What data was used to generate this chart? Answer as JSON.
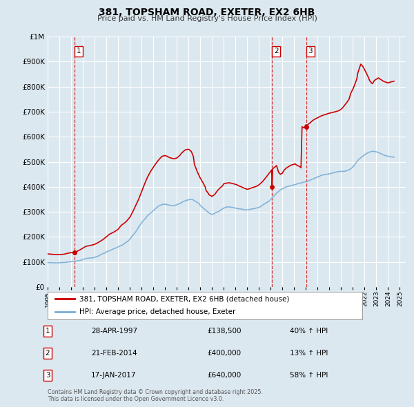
{
  "title": "381, TOPSHAM ROAD, EXETER, EX2 6HB",
  "subtitle": "Price paid vs. HM Land Registry's House Price Index (HPI)",
  "legend_label_red": "381, TOPSHAM ROAD, EXETER, EX2 6HB (detached house)",
  "legend_label_blue": "HPI: Average price, detached house, Exeter",
  "ylim": [
    0,
    1000000
  ],
  "xlim_start": 1995.0,
  "xlim_end": 2025.5,
  "background_color": "#dce8f0",
  "plot_bg_color": "#dce8f0",
  "grid_color": "#ffffff",
  "red_color": "#cc0000",
  "blue_color": "#7aaed6",
  "footnote": "Contains HM Land Registry data © Crown copyright and database right 2025.\nThis data is licensed under the Open Government Licence v3.0.",
  "transactions": [
    {
      "num": 1,
      "date": "28-APR-1997",
      "price": 138500,
      "pct": "40%",
      "direction": "↑",
      "year": 1997.32
    },
    {
      "num": 2,
      "date": "21-FEB-2014",
      "price": 400000,
      "pct": "13%",
      "direction": "↑",
      "year": 2014.12
    },
    {
      "num": 3,
      "date": "17-JAN-2017",
      "price": 640000,
      "pct": "58%",
      "direction": "↑",
      "year": 2017.04
    }
  ],
  "hpi_years": [
    1995.0,
    1995.08,
    1995.17,
    1995.25,
    1995.33,
    1995.42,
    1995.5,
    1995.58,
    1995.67,
    1995.75,
    1995.83,
    1995.92,
    1996.0,
    1996.08,
    1996.17,
    1996.25,
    1996.33,
    1996.42,
    1996.5,
    1996.58,
    1996.67,
    1996.75,
    1996.83,
    1996.92,
    1997.0,
    1997.08,
    1997.17,
    1997.25,
    1997.33,
    1997.42,
    1997.5,
    1997.58,
    1997.67,
    1997.75,
    1997.83,
    1997.92,
    1998.0,
    1998.08,
    1998.17,
    1998.25,
    1998.33,
    1998.42,
    1998.5,
    1998.58,
    1998.67,
    1998.75,
    1998.83,
    1998.92,
    1999.0,
    1999.08,
    1999.17,
    1999.25,
    1999.33,
    1999.42,
    1999.5,
    1999.58,
    1999.67,
    1999.75,
    1999.83,
    1999.92,
    2000.0,
    2000.08,
    2000.17,
    2000.25,
    2000.33,
    2000.42,
    2000.5,
    2000.58,
    2000.67,
    2000.75,
    2000.83,
    2000.92,
    2001.0,
    2001.08,
    2001.17,
    2001.25,
    2001.33,
    2001.42,
    2001.5,
    2001.58,
    2001.67,
    2001.75,
    2001.83,
    2001.92,
    2002.0,
    2002.08,
    2002.17,
    2002.25,
    2002.33,
    2002.42,
    2002.5,
    2002.58,
    2002.67,
    2002.75,
    2002.83,
    2002.92,
    2003.0,
    2003.08,
    2003.17,
    2003.25,
    2003.33,
    2003.42,
    2003.5,
    2003.58,
    2003.67,
    2003.75,
    2003.83,
    2003.92,
    2004.0,
    2004.08,
    2004.17,
    2004.25,
    2004.33,
    2004.42,
    2004.5,
    2004.58,
    2004.67,
    2004.75,
    2004.83,
    2004.92,
    2005.0,
    2005.08,
    2005.17,
    2005.25,
    2005.33,
    2005.42,
    2005.5,
    2005.58,
    2005.67,
    2005.75,
    2005.83,
    2005.92,
    2006.0,
    2006.08,
    2006.17,
    2006.25,
    2006.33,
    2006.42,
    2006.5,
    2006.58,
    2006.67,
    2006.75,
    2006.83,
    2006.92,
    2007.0,
    2007.08,
    2007.17,
    2007.25,
    2007.33,
    2007.42,
    2007.5,
    2007.58,
    2007.67,
    2007.75,
    2007.83,
    2007.92,
    2008.0,
    2008.08,
    2008.17,
    2008.25,
    2008.33,
    2008.42,
    2008.5,
    2008.58,
    2008.67,
    2008.75,
    2008.83,
    2008.92,
    2009.0,
    2009.08,
    2009.17,
    2009.25,
    2009.33,
    2009.42,
    2009.5,
    2009.58,
    2009.67,
    2009.75,
    2009.83,
    2009.92,
    2010.0,
    2010.08,
    2010.17,
    2010.25,
    2010.33,
    2010.42,
    2010.5,
    2010.58,
    2010.67,
    2010.75,
    2010.83,
    2010.92,
    2011.0,
    2011.08,
    2011.17,
    2011.25,
    2011.33,
    2011.42,
    2011.5,
    2011.58,
    2011.67,
    2011.75,
    2011.83,
    2011.92,
    2012.0,
    2012.08,
    2012.17,
    2012.25,
    2012.33,
    2012.42,
    2012.5,
    2012.58,
    2012.67,
    2012.75,
    2012.83,
    2012.92,
    2013.0,
    2013.08,
    2013.17,
    2013.25,
    2013.33,
    2013.42,
    2013.5,
    2013.58,
    2013.67,
    2013.75,
    2013.83,
    2013.92,
    2014.0,
    2014.08,
    2014.17,
    2014.25,
    2014.33,
    2014.42,
    2014.5,
    2014.58,
    2014.67,
    2014.75,
    2014.83,
    2014.92,
    2015.0,
    2015.08,
    2015.17,
    2015.25,
    2015.33,
    2015.42,
    2015.5,
    2015.58,
    2015.67,
    2015.75,
    2015.83,
    2015.92,
    2016.0,
    2016.08,
    2016.17,
    2016.25,
    2016.33,
    2016.42,
    2016.5,
    2016.58,
    2016.67,
    2016.75,
    2016.83,
    2016.92,
    2017.0,
    2017.08,
    2017.17,
    2017.25,
    2017.33,
    2017.42,
    2017.5,
    2017.58,
    2017.67,
    2017.75,
    2017.83,
    2017.92,
    2018.0,
    2018.08,
    2018.17,
    2018.25,
    2018.33,
    2018.42,
    2018.5,
    2018.58,
    2018.67,
    2018.75,
    2018.83,
    2018.92,
    2019.0,
    2019.08,
    2019.17,
    2019.25,
    2019.33,
    2019.42,
    2019.5,
    2019.58,
    2019.67,
    2019.75,
    2019.83,
    2019.92,
    2020.0,
    2020.08,
    2020.17,
    2020.25,
    2020.33,
    2020.42,
    2020.5,
    2020.58,
    2020.67,
    2020.75,
    2020.83,
    2020.92,
    2021.0,
    2021.08,
    2021.17,
    2021.25,
    2021.33,
    2021.42,
    2021.5,
    2021.58,
    2021.67,
    2021.75,
    2021.83,
    2021.92,
    2022.0,
    2022.08,
    2022.17,
    2022.25,
    2022.33,
    2022.42,
    2022.5,
    2022.58,
    2022.67,
    2022.75,
    2022.83,
    2022.92,
    2023.0,
    2023.08,
    2023.17,
    2023.25,
    2023.33,
    2023.42,
    2023.5,
    2023.58,
    2023.67,
    2023.75,
    2023.83,
    2023.92,
    2024.0,
    2024.08,
    2024.17,
    2024.25,
    2024.33,
    2024.42,
    2024.5
  ],
  "hpi_vals": [
    97000,
    97200,
    97100,
    97000,
    96800,
    96600,
    96500,
    96400,
    96300,
    96000,
    96200,
    96400,
    96500,
    96800,
    97000,
    97200,
    97400,
    97700,
    98000,
    98500,
    99000,
    99500,
    100000,
    100500,
    101000,
    101500,
    102000,
    102500,
    103000,
    103500,
    104000,
    104500,
    105000,
    106000,
    107000,
    107500,
    110000,
    111000,
    112000,
    113000,
    114000,
    114500,
    115000,
    115500,
    116000,
    116200,
    116400,
    116800,
    118000,
    119500,
    121000,
    122000,
    124000,
    126000,
    128000,
    130000,
    132000,
    134000,
    135000,
    136000,
    140000,
    141500,
    143000,
    145000,
    146000,
    147500,
    150000,
    151500,
    153000,
    155000,
    156000,
    157500,
    160000,
    162000,
    164000,
    165000,
    167000,
    169000,
    172000,
    174500,
    177000,
    180000,
    183000,
    186000,
    190000,
    196000,
    202000,
    205000,
    210000,
    215000,
    220000,
    226000,
    232000,
    240000,
    245000,
    250000,
    255000,
    261000,
    266000,
    270000,
    274000,
    279000,
    285000,
    288000,
    291000,
    295000,
    298000,
    301000,
    305000,
    308000,
    312000,
    315000,
    318000,
    322000,
    325000,
    326000,
    327000,
    330000,
    330500,
    330000,
    330000,
    329500,
    329000,
    328000,
    327000,
    326500,
    326000,
    325500,
    325000,
    325000,
    326000,
    327000,
    328000,
    330000,
    332000,
    333000,
    335000,
    337000,
    340000,
    342000,
    343000,
    345000,
    346000,
    347000,
    348000,
    349000,
    350000,
    350000,
    349000,
    347000,
    345000,
    342000,
    340000,
    337000,
    335000,
    333000,
    325000,
    322000,
    319000,
    315000,
    312000,
    309000,
    305000,
    302000,
    299000,
    295000,
    293000,
    291000,
    290000,
    291000,
    292000,
    295000,
    297000,
    299000,
    300000,
    302000,
    304000,
    308000,
    310000,
    312000,
    315000,
    316000,
    318000,
    320000,
    319000,
    319000,
    320000,
    319000,
    318000,
    318000,
    317000,
    316000,
    315000,
    314000,
    313000,
    312000,
    312000,
    312000,
    311000,
    310000,
    310000,
    308000,
    308000,
    308000,
    308000,
    308000,
    309000,
    310000,
    311000,
    312000,
    312000,
    313000,
    313000,
    315000,
    316000,
    316000,
    318000,
    320000,
    322000,
    325000,
    328000,
    330000,
    332000,
    335000,
    337000,
    340000,
    342000,
    344000,
    350000,
    354000,
    358000,
    362000,
    366000,
    370000,
    375000,
    378000,
    381000,
    385000,
    388000,
    391000,
    392000,
    394000,
    396000,
    398000,
    400000,
    401000,
    402000,
    403000,
    404000,
    405000,
    406000,
    407000,
    408000,
    409000,
    410000,
    412000,
    413000,
    414000,
    415000,
    415500,
    416000,
    418000,
    419000,
    419500,
    420000,
    421000,
    422000,
    425000,
    426000,
    428000,
    430000,
    431000,
    432000,
    435000,
    436000,
    437000,
    440000,
    441000,
    442000,
    445000,
    446000,
    447000,
    448000,
    448500,
    449000,
    450000,
    450500,
    451000,
    452000,
    453000,
    454000,
    455000,
    456000,
    457000,
    458000,
    459000,
    460000,
    460500,
    461000,
    461500,
    462000,
    462000,
    462000,
    462000,
    462500,
    463000,
    465000,
    466000,
    468000,
    470000,
    473000,
    476000,
    480000,
    484000,
    488000,
    495000,
    500000,
    505000,
    510000,
    513000,
    516000,
    520000,
    522000,
    524000,
    528000,
    531000,
    533000,
    535000,
    537000,
    539000,
    540000,
    541000,
    542000,
    542000,
    541000,
    540000,
    540000,
    538000,
    537000,
    535000,
    534000,
    532000,
    530000,
    528000,
    526000,
    525000,
    524000,
    523000,
    522000,
    521000,
    520500,
    520000,
    519500,
    519000,
    518000
  ],
  "price_years": [
    1995.0,
    1995.17,
    1995.5,
    1995.83,
    1996.0,
    1996.25,
    1996.5,
    1996.67,
    1997.0,
    1997.25,
    1997.33,
    1997.5,
    1997.75,
    1998.0,
    1998.25,
    1998.67,
    1999.0,
    1999.33,
    1999.67,
    2000.0,
    2000.25,
    2000.67,
    2001.0,
    2001.25,
    2001.67,
    2002.0,
    2002.25,
    2002.5,
    2002.75,
    2003.0,
    2003.25,
    2003.5,
    2003.75,
    2004.0,
    2004.25,
    2004.5,
    2004.75,
    2005.0,
    2005.17,
    2005.33,
    2005.5,
    2005.75,
    2006.0,
    2006.25,
    2006.42,
    2006.58,
    2006.75,
    2007.0,
    2007.08,
    2007.25,
    2007.42,
    2007.5,
    2007.75,
    2008.0,
    2008.25,
    2008.42,
    2008.5,
    2008.67,
    2008.75,
    2009.0,
    2009.25,
    2009.42,
    2009.67,
    2009.92,
    2010.0,
    2010.25,
    2010.5,
    2010.67,
    2010.83,
    2011.0,
    2011.17,
    2011.33,
    2011.5,
    2011.67,
    2011.83,
    2012.0,
    2012.17,
    2012.33,
    2012.5,
    2012.67,
    2012.83,
    2013.0,
    2013.17,
    2013.33,
    2013.5,
    2013.67,
    2013.83,
    2014.0,
    2014.08,
    2014.12,
    2014.17,
    2014.33,
    2014.5,
    2014.67,
    2014.83,
    2015.0,
    2015.08,
    2015.17,
    2015.33,
    2015.5,
    2015.67,
    2015.83,
    2016.0,
    2016.08,
    2016.17,
    2016.33,
    2016.5,
    2016.58,
    2016.67,
    2016.75,
    2016.83,
    2017.0,
    2017.04,
    2017.08,
    2017.25,
    2017.42,
    2017.5,
    2017.67,
    2017.83,
    2018.0,
    2018.17,
    2018.25,
    2018.42,
    2018.58,
    2018.75,
    2018.83,
    2019.0,
    2019.17,
    2019.33,
    2019.5,
    2019.67,
    2019.83,
    2020.0,
    2020.17,
    2020.33,
    2020.5,
    2020.67,
    2020.75,
    2020.83,
    2021.0,
    2021.17,
    2021.33,
    2021.42,
    2021.58,
    2021.67,
    2021.83,
    2022.0,
    2022.17,
    2022.33,
    2022.42,
    2022.58,
    2022.67,
    2022.75,
    2022.83,
    2023.0,
    2023.17,
    2023.33,
    2023.5,
    2023.67,
    2023.83,
    2024.0,
    2024.17,
    2024.33,
    2024.5
  ],
  "price_vals": [
    132000,
    131500,
    130000,
    129500,
    129000,
    130000,
    132000,
    134000,
    137000,
    138000,
    138500,
    142000,
    148000,
    155000,
    162000,
    166000,
    170000,
    178000,
    188000,
    200000,
    210000,
    220000,
    230000,
    245000,
    260000,
    278000,
    300000,
    325000,
    350000,
    380000,
    410000,
    438000,
    460000,
    478000,
    495000,
    510000,
    522000,
    525000,
    522000,
    518000,
    515000,
    512000,
    515000,
    525000,
    535000,
    542000,
    548000,
    550000,
    548000,
    540000,
    520000,
    490000,
    460000,
    435000,
    415000,
    400000,
    385000,
    375000,
    368000,
    362000,
    370000,
    382000,
    395000,
    405000,
    412000,
    415000,
    416000,
    414000,
    412000,
    410000,
    407000,
    403000,
    400000,
    396000,
    393000,
    390000,
    392000,
    395000,
    398000,
    400000,
    403000,
    408000,
    415000,
    422000,
    432000,
    442000,
    452000,
    462000,
    468000,
    400000,
    472000,
    478000,
    485000,
    458000,
    450000,
    455000,
    462000,
    468000,
    475000,
    480000,
    485000,
    488000,
    490000,
    492000,
    488000,
    484000,
    480000,
    476000,
    640000,
    638000,
    635000,
    648000,
    640000,
    645000,
    652000,
    658000,
    662000,
    668000,
    672000,
    676000,
    680000,
    682000,
    685000,
    688000,
    690000,
    692000,
    694000,
    696000,
    698000,
    700000,
    702000,
    705000,
    710000,
    718000,
    728000,
    738000,
    750000,
    762000,
    775000,
    790000,
    810000,
    830000,
    855000,
    878000,
    890000,
    882000,
    868000,
    852000,
    836000,
    825000,
    815000,
    812000,
    818000,
    825000,
    830000,
    835000,
    830000,
    825000,
    820000,
    818000,
    815000,
    818000,
    820000,
    822000
  ]
}
